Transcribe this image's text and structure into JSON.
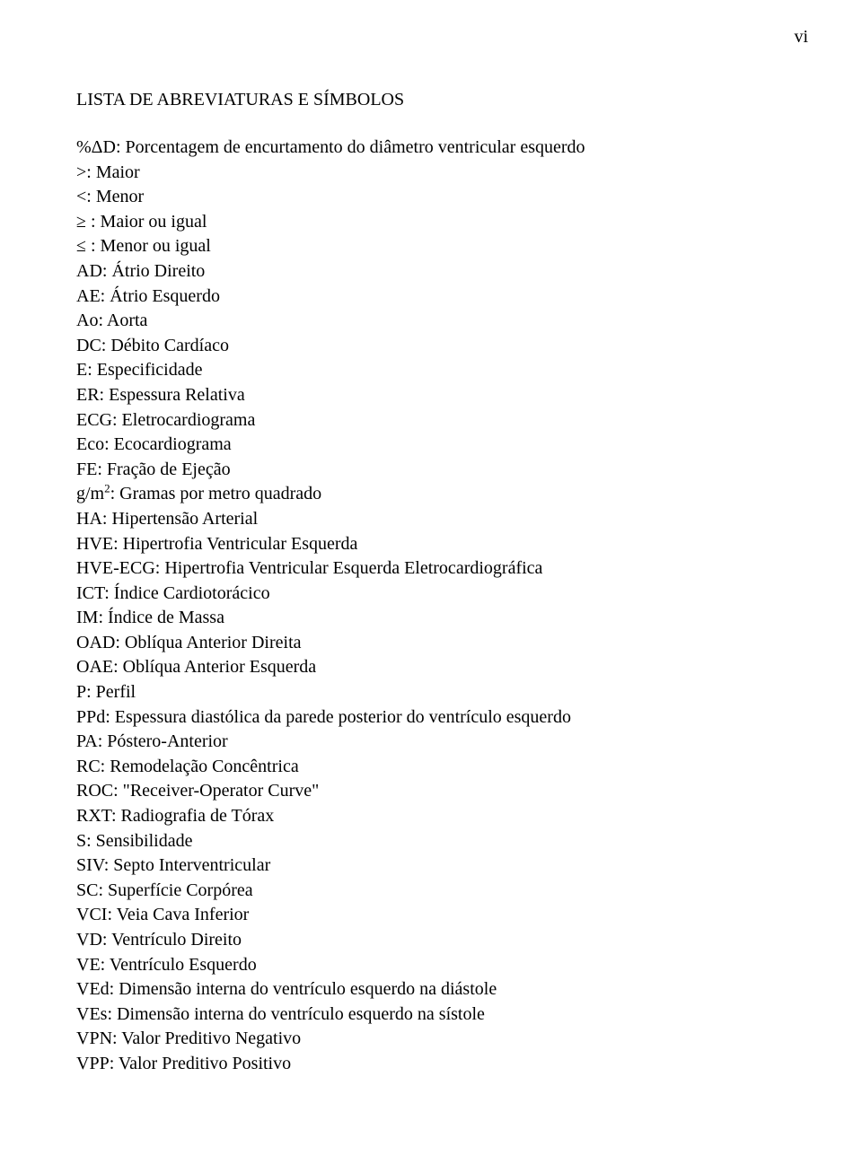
{
  "page_number": "vi",
  "title": "LISTA DE ABREVIATURAS E SÍMBOLOS",
  "entries": [
    "%ΔD: Porcentagem de encurtamento do diâmetro ventricular esquerdo",
    ">: Maior",
    "<: Menor",
    "≥ : Maior ou igual",
    "≤ : Menor ou igual",
    "AD: Átrio Direito",
    "AE: Átrio Esquerdo",
    "Ao: Aorta",
    "DC: Débito Cardíaco",
    "E: Especificidade",
    "ER: Espessura Relativa",
    "ECG: Eletrocardiograma",
    "Eco: Ecocardiograma",
    "FE: Fração de Ejeção",
    "g/m²: Gramas por metro quadrado",
    "HA: Hipertensão Arterial",
    "HVE: Hipertrofia Ventricular Esquerda",
    "HVE-ECG: Hipertrofia Ventricular Esquerda Eletrocardiográfica",
    "ICT: Índice Cardiotorácico",
    "IM: Índice de Massa",
    "OAD: Oblíqua Anterior Direita",
    "OAE: Oblíqua Anterior Esquerda",
    "P: Perfil",
    "PPd: Espessura diastólica da parede posterior do ventrículo esquerdo",
    "PA: Póstero-Anterior",
    "RC: Remodelação Concêntrica",
    "ROC: \"Receiver-Operator Curve\"",
    "RXT: Radiografia de Tórax",
    "S: Sensibilidade",
    "SIV: Septo Interventricular",
    "SC: Superfície Corpórea",
    "VCI: Veia Cava Inferior",
    "VD: Ventrículo Direito",
    "VE: Ventrículo Esquerdo",
    "VEd: Dimensão interna do ventrículo esquerdo na diástole",
    "VEs: Dimensão interna do ventrículo esquerdo na sístole",
    "VPN: Valor Preditivo Negativo",
    "VPP: Valor Preditivo Positivo"
  ],
  "sup_entry_index": 14,
  "sup_prefix": "g/m",
  "sup_value": "2",
  "sup_suffix": ": Gramas por metro quadrado"
}
